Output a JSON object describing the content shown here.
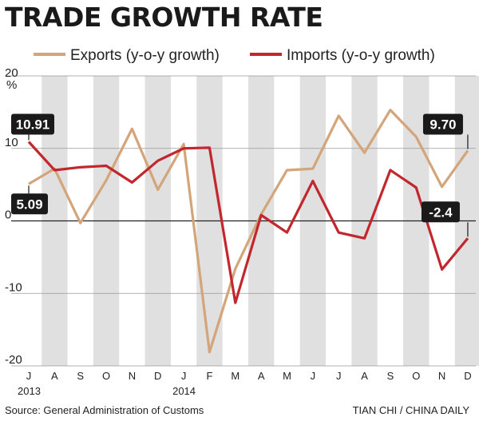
{
  "chart_data": {
    "type": "line",
    "title": "TRADE GROWTH RATE",
    "ylabel": "%",
    "ylim": [
      -20,
      20
    ],
    "yticks": [
      -20,
      -10,
      0,
      10,
      20
    ],
    "x": [
      "J",
      "A",
      "S",
      "O",
      "N",
      "D",
      "J",
      "F",
      "M",
      "A",
      "M",
      "J",
      "J",
      "A",
      "S",
      "O",
      "N",
      "D"
    ],
    "year_labels": [
      {
        "index": 0,
        "label": "2013"
      },
      {
        "index": 6,
        "label": "2014"
      }
    ],
    "series": [
      {
        "name": "Exports (y-o-y growth)",
        "color": "#d4a57a",
        "values": [
          5.09,
          7.2,
          -0.3,
          5.6,
          12.7,
          4.3,
          10.6,
          -18.1,
          -6.6,
          0.9,
          7.0,
          7.2,
          14.5,
          9.4,
          15.3,
          11.6,
          4.7,
          9.7
        ]
      },
      {
        "name": "Imports (y-o-y growth)",
        "color": "#c1272d",
        "values": [
          10.91,
          7.0,
          7.4,
          7.6,
          5.3,
          8.3,
          10.0,
          10.1,
          -11.3,
          0.8,
          -1.6,
          5.5,
          -1.6,
          -2.4,
          7.0,
          4.6,
          -6.7,
          -2.4
        ]
      }
    ],
    "callouts": [
      {
        "label": "10.91",
        "series": 1,
        "index": 0
      },
      {
        "label": "5.09",
        "series": 0,
        "index": 0
      },
      {
        "label": "9.70",
        "series": 0,
        "index": 17
      },
      {
        "label": "-2.4",
        "series": 1,
        "index": 17
      }
    ]
  },
  "source": "Source: General Administration of Customs",
  "credit": "TIAN CHI  / CHINA DAILY"
}
